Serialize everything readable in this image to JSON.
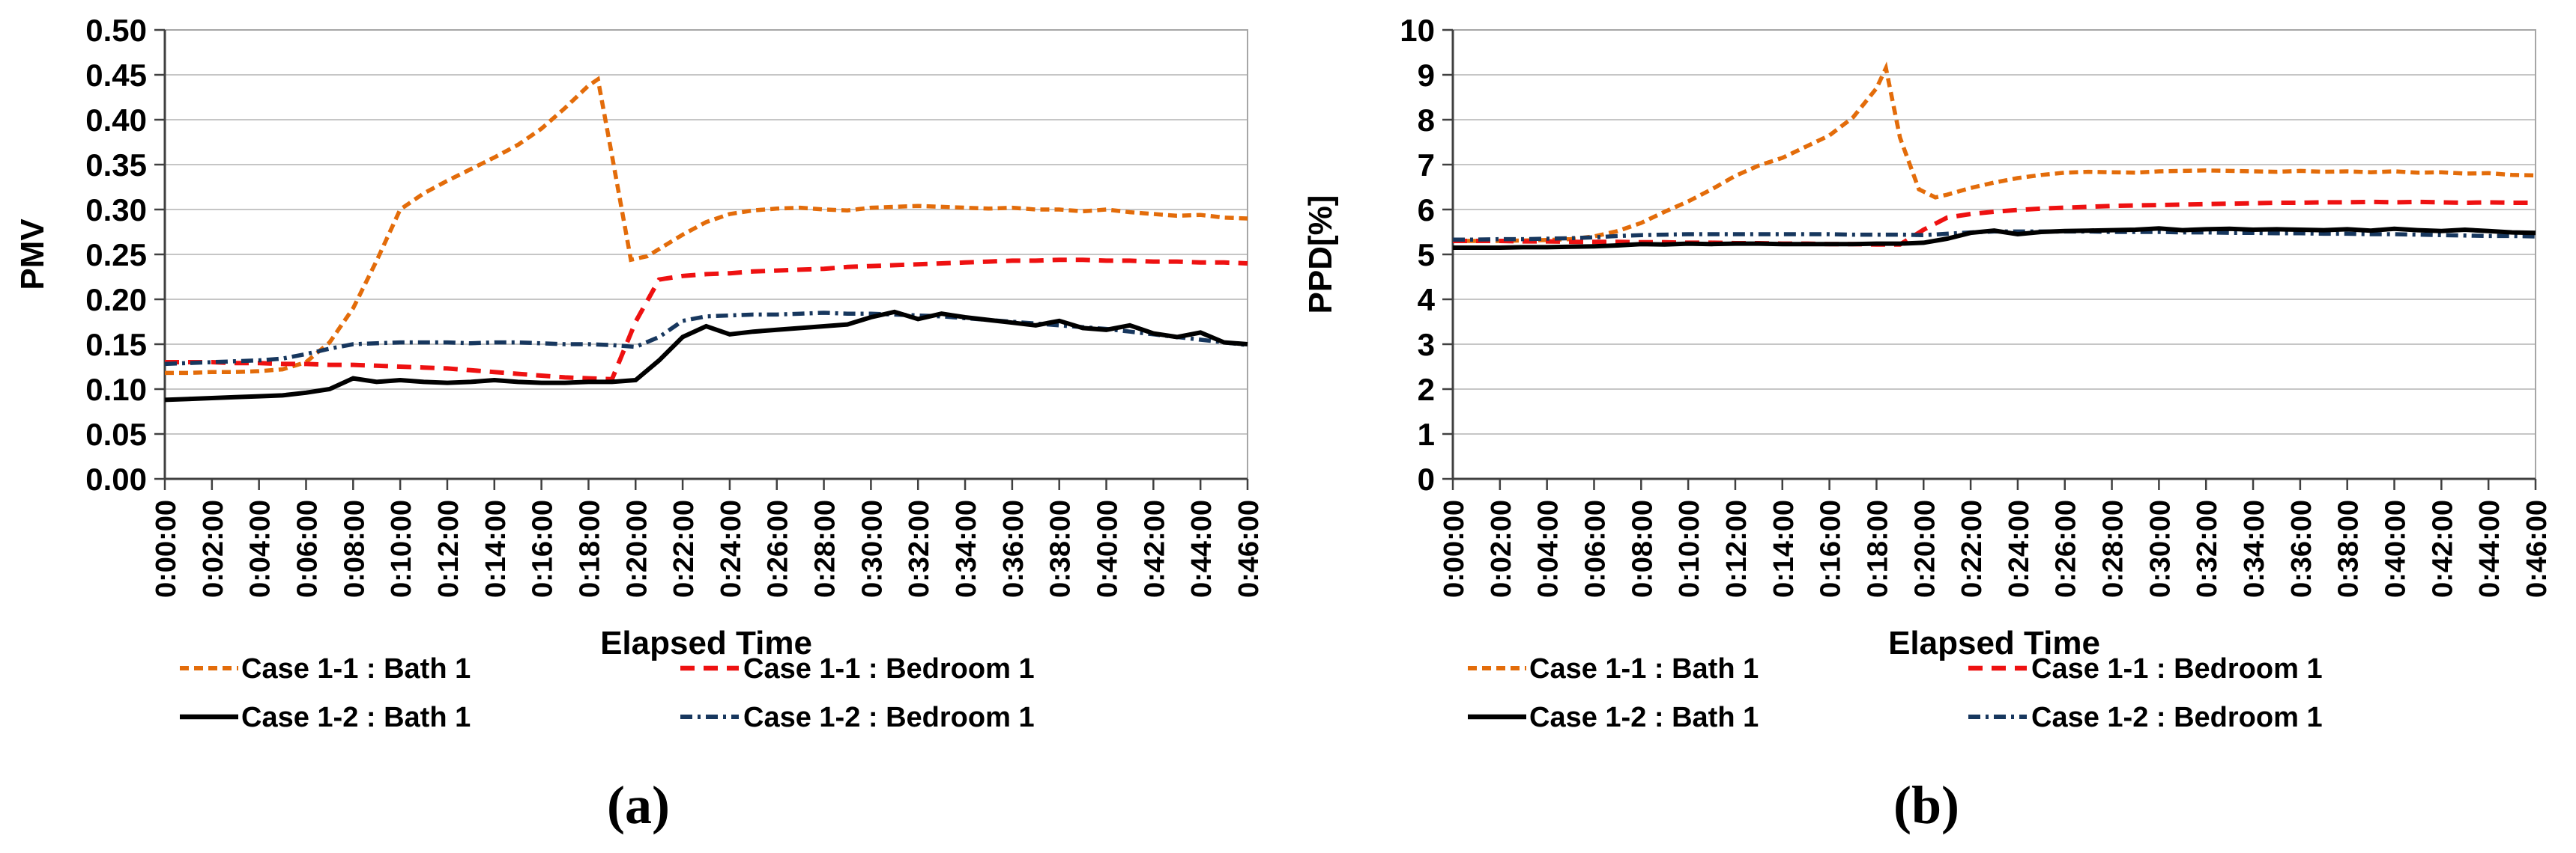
{
  "figure": {
    "background": "#FFFFFF",
    "grid_color": "#C6C6C6",
    "border_color": "#A6A6A6",
    "axis_color": "#404040",
    "text_color": "#000000"
  },
  "chart_data": [
    {
      "type": "line",
      "caption": "(a)",
      "title": "",
      "xlabel": "Elapsed Time",
      "ylabel": "PMV",
      "ylim": [
        0.0,
        0.5
      ],
      "ytick_step": 0.05,
      "y_ticks": [
        "0.00",
        "0.05",
        "0.10",
        "0.15",
        "0.20",
        "0.25",
        "0.30",
        "0.35",
        "0.40",
        "0.45",
        "0.50"
      ],
      "x_ticks": [
        "0:00:00",
        "0:02:00",
        "0:04:00",
        "0:06:00",
        "0:08:00",
        "0:10:00",
        "0:12:00",
        "0:14:00",
        "0:16:00",
        "0:18:00",
        "0:20:00",
        "0:22:00",
        "0:24:00",
        "0:26:00",
        "0:28:00",
        "0:30:00",
        "0:32:00",
        "0:34:00",
        "0:36:00",
        "0:38:00",
        "0:40:00",
        "0:42:00",
        "0:44:00",
        "0:46:00"
      ],
      "x_minutes_per_tick": 2,
      "x_max_minutes": 46,
      "grid": "horizontal",
      "legend_position": "bottom",
      "series": [
        {
          "name": "Case 1-1 : Bath 1",
          "color": "#E36C0A",
          "style": "short-dash",
          "x": [
            0,
            1,
            2,
            3,
            4,
            5,
            6,
            7,
            8,
            9,
            10,
            11,
            12,
            13,
            14,
            15,
            16,
            17,
            18,
            18.4,
            19,
            19.8,
            20.5,
            21,
            22,
            23,
            24,
            25,
            26,
            27,
            28,
            29,
            30,
            31,
            32,
            33,
            34,
            35,
            36,
            37,
            38,
            39,
            40,
            41,
            42,
            43,
            44,
            45,
            46
          ],
          "values": [
            0.118,
            0.118,
            0.119,
            0.119,
            0.12,
            0.122,
            0.13,
            0.152,
            0.19,
            0.243,
            0.3,
            0.318,
            0.332,
            0.345,
            0.358,
            0.372,
            0.39,
            0.413,
            0.438,
            0.445,
            0.36,
            0.244,
            0.248,
            0.256,
            0.272,
            0.286,
            0.295,
            0.299,
            0.301,
            0.302,
            0.3,
            0.299,
            0.302,
            0.303,
            0.304,
            0.303,
            0.302,
            0.301,
            0.302,
            0.3,
            0.3,
            0.298,
            0.3,
            0.297,
            0.295,
            0.293,
            0.294,
            0.291,
            0.29
          ]
        },
        {
          "name": "Case 1-1 : Bedroom 1",
          "color": "#EE1111",
          "style": "long-dash",
          "values": [
            0.13,
            0.13,
            0.13,
            0.129,
            0.129,
            0.128,
            0.128,
            0.127,
            0.127,
            0.126,
            0.125,
            0.124,
            0.123,
            0.121,
            0.119,
            0.117,
            0.115,
            0.113,
            0.112,
            0.111,
            0.175,
            0.222,
            0.226,
            0.228,
            0.229,
            0.231,
            0.232,
            0.233,
            0.234,
            0.236,
            0.237,
            0.238,
            0.239,
            0.24,
            0.241,
            0.242,
            0.243,
            0.243,
            0.244,
            0.244,
            0.243,
            0.243,
            0.242,
            0.242,
            0.241,
            0.241,
            0.24
          ]
        },
        {
          "name": "Case 1-2 : Bath 1",
          "color": "#000000",
          "style": "solid",
          "values": [
            0.088,
            0.089,
            0.09,
            0.091,
            0.092,
            0.093,
            0.096,
            0.1,
            0.112,
            0.108,
            0.11,
            0.108,
            0.107,
            0.108,
            0.11,
            0.108,
            0.107,
            0.107,
            0.108,
            0.108,
            0.11,
            0.132,
            0.158,
            0.17,
            0.161,
            0.164,
            0.166,
            0.168,
            0.17,
            0.172,
            0.18,
            0.186,
            0.178,
            0.184,
            0.18,
            0.177,
            0.174,
            0.171,
            0.176,
            0.168,
            0.166,
            0.171,
            0.162,
            0.158,
            0.163,
            0.152,
            0.15
          ]
        },
        {
          "name": "Case 1-2 : Bedroom 1",
          "color": "#17375E",
          "style": "dash-dot",
          "values": [
            0.128,
            0.129,
            0.13,
            0.131,
            0.132,
            0.134,
            0.139,
            0.145,
            0.15,
            0.151,
            0.152,
            0.152,
            0.152,
            0.151,
            0.152,
            0.152,
            0.151,
            0.15,
            0.15,
            0.149,
            0.147,
            0.158,
            0.176,
            0.181,
            0.182,
            0.183,
            0.183,
            0.184,
            0.185,
            0.184,
            0.184,
            0.183,
            0.182,
            0.181,
            0.179,
            0.177,
            0.175,
            0.173,
            0.171,
            0.169,
            0.167,
            0.164,
            0.161,
            0.158,
            0.155,
            0.152,
            0.149
          ]
        }
      ]
    },
    {
      "type": "line",
      "caption": "(b)",
      "title": "",
      "xlabel": "Elapsed Time",
      "ylabel": "PPD[%]",
      "ylim": [
        0,
        10
      ],
      "ytick_step": 1,
      "y_ticks": [
        "0",
        "1",
        "2",
        "3",
        "4",
        "5",
        "6",
        "7",
        "8",
        "9",
        "10"
      ],
      "x_ticks": [
        "0:00:00",
        "0:02:00",
        "0:04:00",
        "0:06:00",
        "0:08:00",
        "0:10:00",
        "0:12:00",
        "0:14:00",
        "0:16:00",
        "0:18:00",
        "0:20:00",
        "0:22:00",
        "0:24:00",
        "0:26:00",
        "0:28:00",
        "0:30:00",
        "0:32:00",
        "0:34:00",
        "0:36:00",
        "0:38:00",
        "0:40:00",
        "0:42:00",
        "0:44:00",
        "0:46:00"
      ],
      "x_minutes_per_tick": 2,
      "x_max_minutes": 46,
      "grid": "horizontal",
      "legend_position": "bottom",
      "series": [
        {
          "name": "Case 1-1 : Bath 1",
          "color": "#E36C0A",
          "style": "short-dash",
          "x": [
            0,
            1,
            2,
            3,
            4,
            5,
            6,
            7,
            8,
            9,
            10,
            11,
            12,
            13,
            14,
            15,
            16,
            17,
            18,
            18.4,
            19,
            19.8,
            20.5,
            21,
            22,
            23,
            24,
            25,
            26,
            27,
            28,
            29,
            30,
            31,
            32,
            33,
            34,
            35,
            36,
            37,
            38,
            39,
            40,
            41,
            42,
            43,
            44,
            45,
            46
          ],
          "values": [
            5.3,
            5.3,
            5.3,
            5.31,
            5.32,
            5.34,
            5.4,
            5.52,
            5.7,
            5.95,
            6.18,
            6.45,
            6.75,
            6.98,
            7.15,
            7.4,
            7.65,
            8.05,
            8.7,
            9.15,
            7.6,
            6.45,
            6.27,
            6.33,
            6.48,
            6.6,
            6.7,
            6.77,
            6.82,
            6.84,
            6.83,
            6.82,
            6.85,
            6.86,
            6.87,
            6.86,
            6.85,
            6.84,
            6.86,
            6.84,
            6.85,
            6.83,
            6.85,
            6.82,
            6.83,
            6.8,
            6.81,
            6.77,
            6.76
          ]
        },
        {
          "name": "Case 1-1 : Bedroom 1",
          "color": "#EE1111",
          "style": "long-dash",
          "values": [
            5.3,
            5.3,
            5.3,
            5.29,
            5.29,
            5.28,
            5.28,
            5.28,
            5.27,
            5.27,
            5.26,
            5.26,
            5.25,
            5.25,
            5.24,
            5.24,
            5.23,
            5.23,
            5.22,
            5.22,
            5.55,
            5.82,
            5.9,
            5.95,
            5.99,
            6.02,
            6.04,
            6.06,
            6.08,
            6.09,
            6.1,
            6.11,
            6.12,
            6.13,
            6.14,
            6.15,
            6.15,
            6.16,
            6.16,
            6.17,
            6.16,
            6.17,
            6.16,
            6.15,
            6.16,
            6.15,
            6.15
          ]
        },
        {
          "name": "Case 1-2 : Bath 1",
          "color": "#000000",
          "style": "solid",
          "values": [
            5.15,
            5.15,
            5.15,
            5.16,
            5.16,
            5.17,
            5.18,
            5.2,
            5.23,
            5.22,
            5.24,
            5.23,
            5.24,
            5.24,
            5.23,
            5.23,
            5.23,
            5.23,
            5.24,
            5.24,
            5.26,
            5.35,
            5.48,
            5.53,
            5.45,
            5.5,
            5.52,
            5.53,
            5.54,
            5.55,
            5.58,
            5.54,
            5.56,
            5.57,
            5.55,
            5.56,
            5.55,
            5.54,
            5.56,
            5.53,
            5.57,
            5.54,
            5.52,
            5.55,
            5.52,
            5.49,
            5.48
          ]
        },
        {
          "name": "Case 1-2 : Bedroom 1",
          "color": "#17375E",
          "style": "dash-dot",
          "values": [
            5.33,
            5.33,
            5.34,
            5.34,
            5.35,
            5.36,
            5.38,
            5.41,
            5.43,
            5.44,
            5.45,
            5.45,
            5.45,
            5.45,
            5.45,
            5.45,
            5.45,
            5.44,
            5.44,
            5.44,
            5.43,
            5.46,
            5.49,
            5.51,
            5.51,
            5.51,
            5.51,
            5.51,
            5.5,
            5.5,
            5.5,
            5.49,
            5.49,
            5.48,
            5.48,
            5.47,
            5.47,
            5.46,
            5.46,
            5.45,
            5.45,
            5.44,
            5.43,
            5.42,
            5.41,
            5.41,
            5.4
          ]
        }
      ]
    }
  ]
}
